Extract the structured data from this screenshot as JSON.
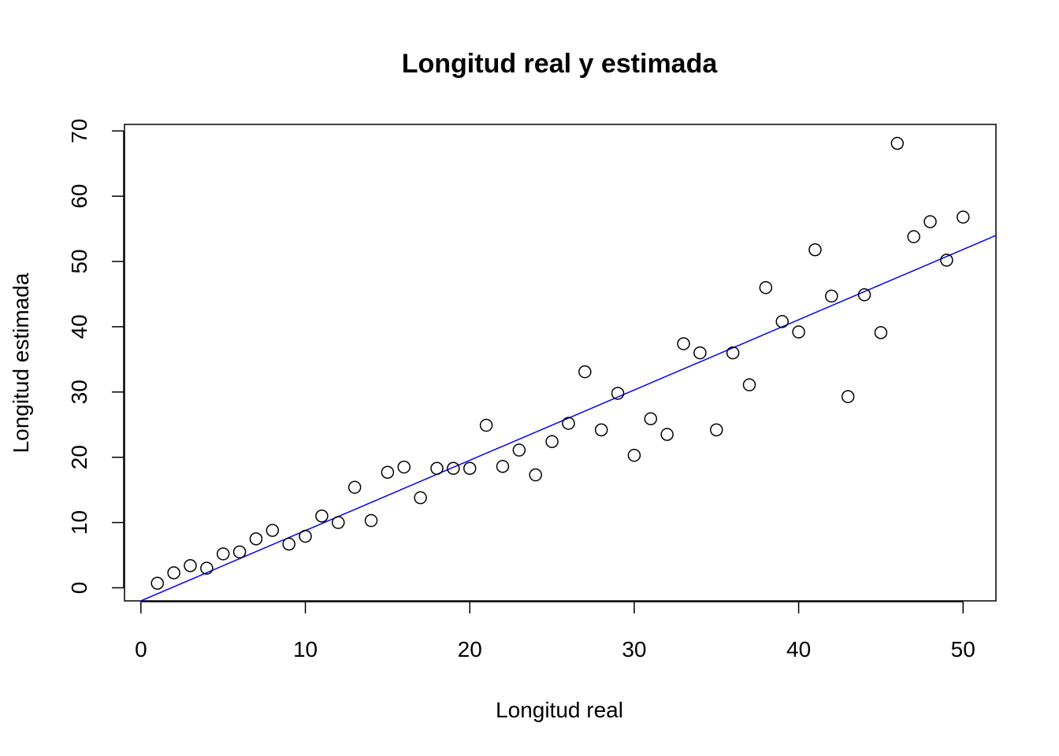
{
  "chart_data": {
    "type": "scatter",
    "title": "Longitud real y estimada",
    "xlabel": "Longitud real",
    "ylabel": "Longitud estimada",
    "xlim": [
      -1,
      52
    ],
    "ylim": [
      -2,
      71
    ],
    "x_ticks": [
      0,
      10,
      20,
      30,
      40,
      50
    ],
    "y_ticks": [
      0,
      10,
      20,
      30,
      40,
      50,
      60,
      70
    ],
    "grid": false,
    "legend": "none",
    "point_color": "#000000",
    "line_color": "#0000ff",
    "series": [
      {
        "x": [
          1,
          2,
          3,
          4,
          5,
          6,
          7,
          8,
          9,
          10,
          11,
          12,
          13,
          14,
          15,
          16,
          17,
          18,
          19,
          20,
          21,
          22,
          23,
          24,
          25,
          26,
          27,
          28,
          29,
          30,
          31,
          32,
          33,
          34,
          35,
          36,
          37,
          38,
          39,
          40,
          41,
          42,
          43,
          44,
          45,
          46,
          47,
          48,
          49,
          50
        ],
        "y": [
          0.7,
          2.3,
          3.4,
          3.0,
          5.2,
          5.5,
          7.5,
          8.8,
          6.7,
          7.9,
          11.0,
          10.0,
          15.4,
          10.3,
          17.7,
          18.5,
          13.8,
          18.3,
          18.3,
          18.3,
          24.9,
          18.6,
          21.1,
          17.3,
          22.4,
          25.2,
          33.1,
          24.2,
          29.8,
          20.3,
          25.9,
          23.5,
          37.4,
          36.0,
          24.2,
          36.0,
          31.1,
          46.0,
          40.8,
          39.2,
          51.8,
          44.7,
          29.3,
          44.9,
          39.1,
          68.1,
          53.8,
          56.1,
          50.2,
          56.8
        ]
      }
    ],
    "fit_line": {
      "x": [
        0,
        52
      ],
      "y": [
        -2.0,
        54.0
      ]
    }
  }
}
